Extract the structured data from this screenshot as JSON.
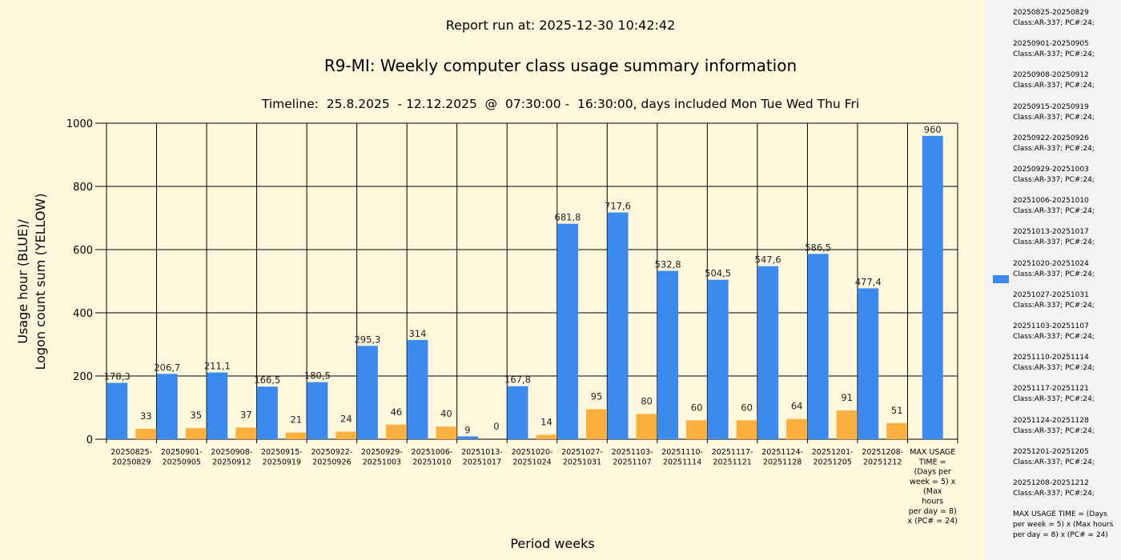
{
  "header": {
    "report_run": "Report run at: 2025-12-30 10:42:42"
  },
  "chart_data": {
    "type": "bar",
    "title": "R9-MI: Weekly computer class usage summary information",
    "subtitle": "Timeline:  25.8.2025  - 12.12.2025  @  07:30:00 -  16:30:00, days included Mon Tue Wed Thu Fri",
    "ylabel_line1": "Usage hour (BLUE)/",
    "ylabel_line2": "Logon count sum (YELLOW)",
    "xlabel": "Period weeks",
    "ylim": [
      0,
      1000
    ],
    "yticks": [
      "0",
      "200",
      "400",
      "600",
      "800",
      "1000"
    ],
    "ytick_values": [
      0,
      200,
      400,
      600,
      800,
      1000
    ],
    "categories": [
      [
        "20250825-",
        "20250829"
      ],
      [
        "20250901-",
        "20250905"
      ],
      [
        "20250908-",
        "20250912"
      ],
      [
        "20250915-",
        "20250919"
      ],
      [
        "20250922-",
        "20250926"
      ],
      [
        "20250929-",
        "20251003"
      ],
      [
        "20251006-",
        "20251010"
      ],
      [
        "20251013-",
        "20251017"
      ],
      [
        "20251020-",
        "20251024"
      ],
      [
        "20251027-",
        "20251031"
      ],
      [
        "20251103-",
        "20251107"
      ],
      [
        "20251110-",
        "20251114"
      ],
      [
        "20251117-",
        "20251121"
      ],
      [
        "20251124-",
        "20251128"
      ],
      [
        "20251201-",
        "20251205"
      ],
      [
        "20251208-",
        "20251212"
      ],
      [
        "MAX USAGE",
        "TIME =",
        "(Days per",
        "week = 5) x",
        "(Max",
        "hours",
        "per day = 8)",
        "x (PC# = 24)"
      ]
    ],
    "series": [
      {
        "name": "Usage hour",
        "color": "#3b8bef",
        "values": [
          178.3,
          206.7,
          211.1,
          166.5,
          180.5,
          295.3,
          314,
          9,
          167.8,
          681.8,
          717.6,
          532.8,
          504.5,
          547.6,
          586.5,
          477.4,
          960
        ],
        "labels": [
          "178,3",
          "206,7",
          "211,1",
          "166,5",
          "180,5",
          "295,3",
          "314",
          "9",
          "167,8",
          "681,8",
          "717,6",
          "532,8",
          "504,5",
          "547,6",
          "586,5",
          "477,4",
          "960"
        ]
      },
      {
        "name": "Logon count sum",
        "color": "#fbb040",
        "values": [
          33,
          35,
          37,
          21,
          24,
          46,
          40,
          0,
          14,
          95,
          80,
          60,
          60,
          64,
          91,
          51,
          null
        ],
        "labels": [
          "33",
          "35",
          "37",
          "21",
          "24",
          "46",
          "40",
          "0",
          "14",
          "95",
          "80",
          "60",
          "60",
          "64",
          "91",
          "51",
          ""
        ]
      }
    ]
  },
  "legend": {
    "swatch_color": "#3b8bef",
    "items": [
      {
        "line1": "20250825-20250829",
        "line2": "Class:AR-337; PC#:24;"
      },
      {
        "line1": "20250901-20250905",
        "line2": "Class:AR-337; PC#:24;"
      },
      {
        "line1": "20250908-20250912",
        "line2": "Class:AR-337; PC#:24;"
      },
      {
        "line1": "20250915-20250919",
        "line2": "Class:AR-337; PC#:24;"
      },
      {
        "line1": "20250922-20250926",
        "line2": "Class:AR-337; PC#:24;"
      },
      {
        "line1": "20250929-20251003",
        "line2": "Class:AR-337; PC#:24;"
      },
      {
        "line1": "20251006-20251010",
        "line2": "Class:AR-337; PC#:24;"
      },
      {
        "line1": "20251013-20251017",
        "line2": "Class:AR-337; PC#:24;"
      },
      {
        "line1": "20251020-20251024",
        "line2": "Class:AR-337; PC#:24;"
      },
      {
        "line1": "20251027-20251031",
        "line2": "Class:AR-337; PC#:24;"
      },
      {
        "line1": "20251103-20251107",
        "line2": "Class:AR-337; PC#:24;"
      },
      {
        "line1": "20251110-20251114",
        "line2": "Class:AR-337; PC#:24;"
      },
      {
        "line1": "20251117-20251121",
        "line2": "Class:AR-337; PC#:24;"
      },
      {
        "line1": "20251124-20251128",
        "line2": "Class:AR-337; PC#:24;"
      },
      {
        "line1": "20251201-20251205",
        "line2": "Class:AR-337; PC#:24;"
      },
      {
        "line1": "20251208-20251212",
        "line2": "Class:AR-337; PC#:24;"
      }
    ],
    "max_item": "MAX USAGE TIME =  (Days per week = 5) x (Max hours per day = 8) x (PC# = 24)"
  }
}
